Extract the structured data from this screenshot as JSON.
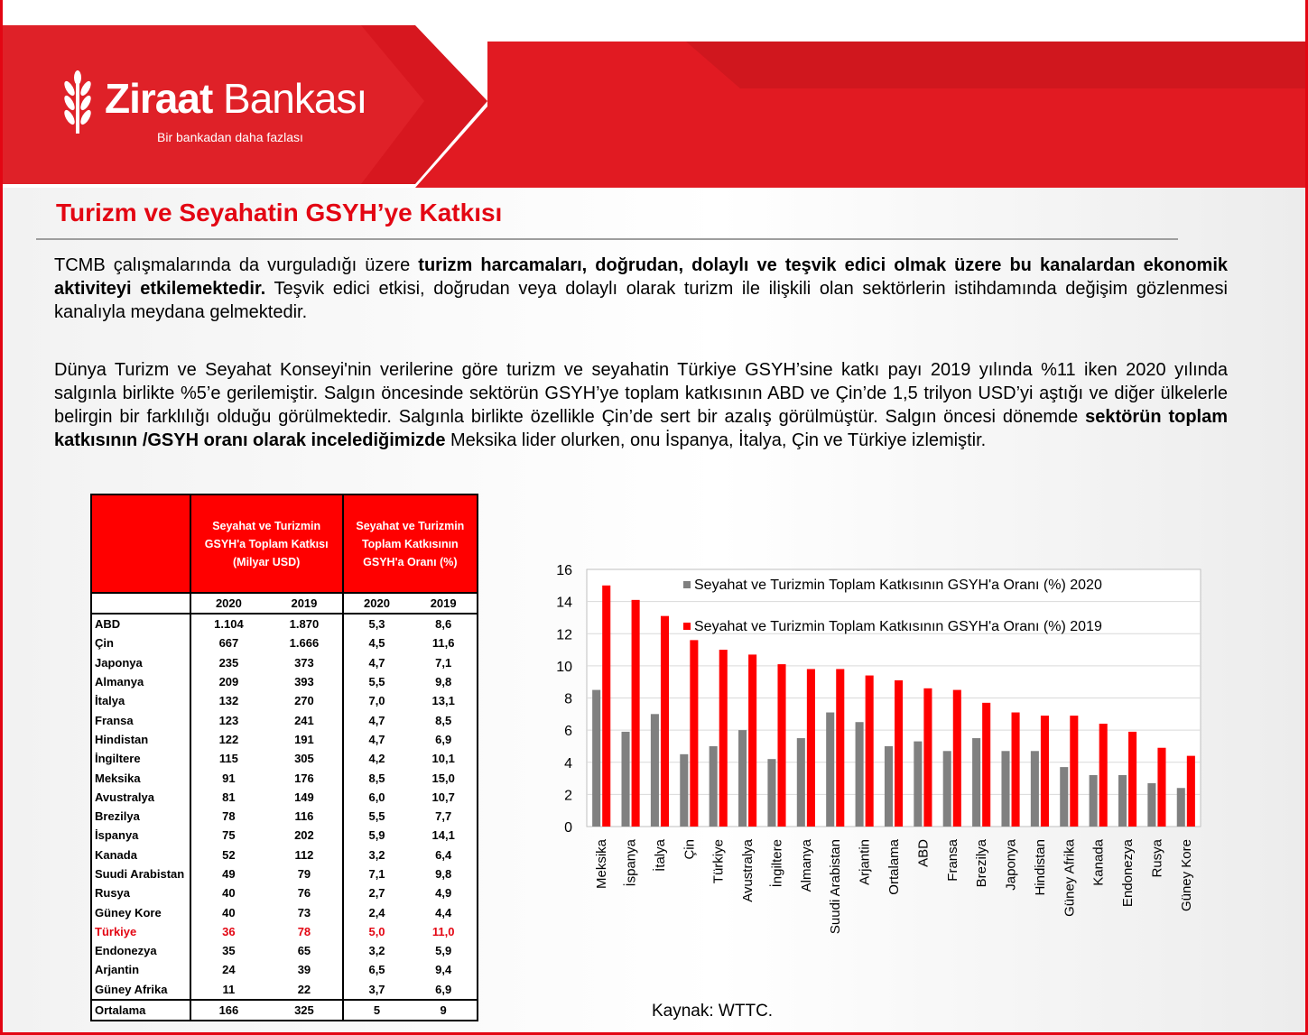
{
  "brand": {
    "name_bold": "Ziraat",
    "name_light": "Bankası",
    "slogan": "Bir bankadan daha fazlası",
    "accent": "#e30613"
  },
  "title": "Turizm ve Seyahatin GSYH’ye Katkısı",
  "paragraph1": {
    "t1": "TCMB çalışmalarında da vurguladığı üzere ",
    "b1": "turizm harcamaları, doğrudan, dolaylı ve teşvik edici olmak üzere bu kanalardan ekonomik aktiviteyi etkilemektedir.",
    "t2": " Teşvik edici etkisi, doğrudan veya dolaylı olarak turizm ile ilişkili olan sektörlerin istihdamında değişim gözlenmesi kanalıyla meydana gelmektedir."
  },
  "paragraph2": {
    "t1": "Dünya Turizm ve Seyahat Konseyi'nin verilerine göre turizm ve seyahatin Türkiye GSYH’sine katkı payı 2019 yılında %11 iken 2020 yılında salgınla birlikte %5’e gerilemiştir. Salgın öncesinde sektörün GSYH’ye toplam katkısının ABD ve Çin’de 1,5 trilyon USD’yi aştığı ve diğer ülkelerle belirgin bir farklılığı olduğu görülmektedir. Salgınla birlikte özellikle Çin’de sert bir azalış görülmüştür. Salgın öncesi dönemde ",
    "b1": "sektörün toplam katkısının /GSYH oranı olarak incelediğimizde",
    "t2": " Meksika lider olurken, onu İspanya, İtalya, Çin ve Türkiye izlemiştir."
  },
  "table": {
    "header1": "Seyahat ve Turizmin GSYH'a Toplam Katkısı (Milyar USD)",
    "header2": "Seyahat ve Turizmin Toplam Katkısının GSYH'a Oranı (%)",
    "years": [
      "2020",
      "2019",
      "2020",
      "2019"
    ],
    "rows": [
      {
        "country": "ABD",
        "v": [
          "1.104",
          "1.870",
          "5,3",
          "8,6"
        ]
      },
      {
        "country": "Çin",
        "v": [
          "667",
          "1.666",
          "4,5",
          "11,6"
        ]
      },
      {
        "country": "Japonya",
        "v": [
          "235",
          "373",
          "4,7",
          "7,1"
        ]
      },
      {
        "country": "Almanya",
        "v": [
          "209",
          "393",
          "5,5",
          "9,8"
        ]
      },
      {
        "country": "İtalya",
        "v": [
          "132",
          "270",
          "7,0",
          "13,1"
        ]
      },
      {
        "country": "Fransa",
        "v": [
          "123",
          "241",
          "4,7",
          "8,5"
        ]
      },
      {
        "country": "Hindistan",
        "v": [
          "122",
          "191",
          "4,7",
          "6,9"
        ]
      },
      {
        "country": "İngiltere",
        "v": [
          "115",
          "305",
          "4,2",
          "10,1"
        ]
      },
      {
        "country": "Meksika",
        "v": [
          "91",
          "176",
          "8,5",
          "15,0"
        ]
      },
      {
        "country": "Avustralya",
        "v": [
          "81",
          "149",
          "6,0",
          "10,7"
        ]
      },
      {
        "country": "Brezilya",
        "v": [
          "78",
          "116",
          "5,5",
          "7,7"
        ]
      },
      {
        "country": "İspanya",
        "v": [
          "75",
          "202",
          "5,9",
          "14,1"
        ]
      },
      {
        "country": "Kanada",
        "v": [
          "52",
          "112",
          "3,2",
          "6,4"
        ]
      },
      {
        "country": "Suudi Arabistan",
        "v": [
          "49",
          "79",
          "7,1",
          "9,8"
        ]
      },
      {
        "country": "Rusya",
        "v": [
          "40",
          "76",
          "2,7",
          "4,9"
        ]
      },
      {
        "country": "Güney Kore",
        "v": [
          "40",
          "73",
          "2,4",
          "4,4"
        ]
      },
      {
        "country": "Türkiye",
        "v": [
          "36",
          "78",
          "5,0",
          "11,0"
        ]
      },
      {
        "country": "Endonezya",
        "v": [
          "35",
          "65",
          "3,2",
          "5,9"
        ]
      },
      {
        "country": "Arjantin",
        "v": [
          "24",
          "39",
          "6,5",
          "9,4"
        ]
      },
      {
        "country": "Güney Afrika",
        "v": [
          "11",
          "22",
          "3,7",
          "6,9"
        ]
      }
    ],
    "average": {
      "country": "Ortalama",
      "v": [
        "166",
        "325",
        "5",
        "9"
      ]
    },
    "highlight_color": "#e30613"
  },
  "chart_data": {
    "type": "bar",
    "categories": [
      "Meksika",
      "İspanya",
      "İtalya",
      "Çin",
      "Türkiye",
      "Avustralya",
      "İngiltere",
      "Almanya",
      "Suudi Arabistan",
      "Arjantin",
      "Ortalama",
      "ABD",
      "Fransa",
      "Brezilya",
      "Japonya",
      "Hindistan",
      "Güney Afrika",
      "Kanada",
      "Endonezya",
      "Rusya",
      "Güney Kore"
    ],
    "series": [
      {
        "name": "Seyahat ve Turizmin Toplam Katkısının GSYH'a Oranı (%) 2020",
        "color": "#808080",
        "values": [
          8.5,
          5.9,
          7.0,
          4.5,
          5.0,
          6.0,
          4.2,
          5.5,
          7.1,
          6.5,
          5.0,
          5.3,
          4.7,
          5.5,
          4.7,
          4.7,
          3.7,
          3.2,
          3.2,
          2.7,
          2.4
        ]
      },
      {
        "name": "Seyahat ve Turizmin Toplam Katkısının GSYH'a Oranı (%) 2019",
        "color": "#ff0000",
        "values": [
          15.0,
          14.1,
          13.1,
          11.6,
          11.0,
          10.7,
          10.1,
          9.8,
          9.8,
          9.4,
          9.1,
          8.6,
          8.5,
          7.7,
          7.1,
          6.9,
          6.9,
          6.4,
          5.9,
          4.9,
          4.4
        ]
      }
    ],
    "ylim": [
      0,
      16
    ],
    "yticks": [
      0,
      2,
      4,
      6,
      8,
      10,
      12,
      14,
      16
    ],
    "grid": true,
    "legend": "top-right"
  },
  "source": "Kaynak: WTTC."
}
